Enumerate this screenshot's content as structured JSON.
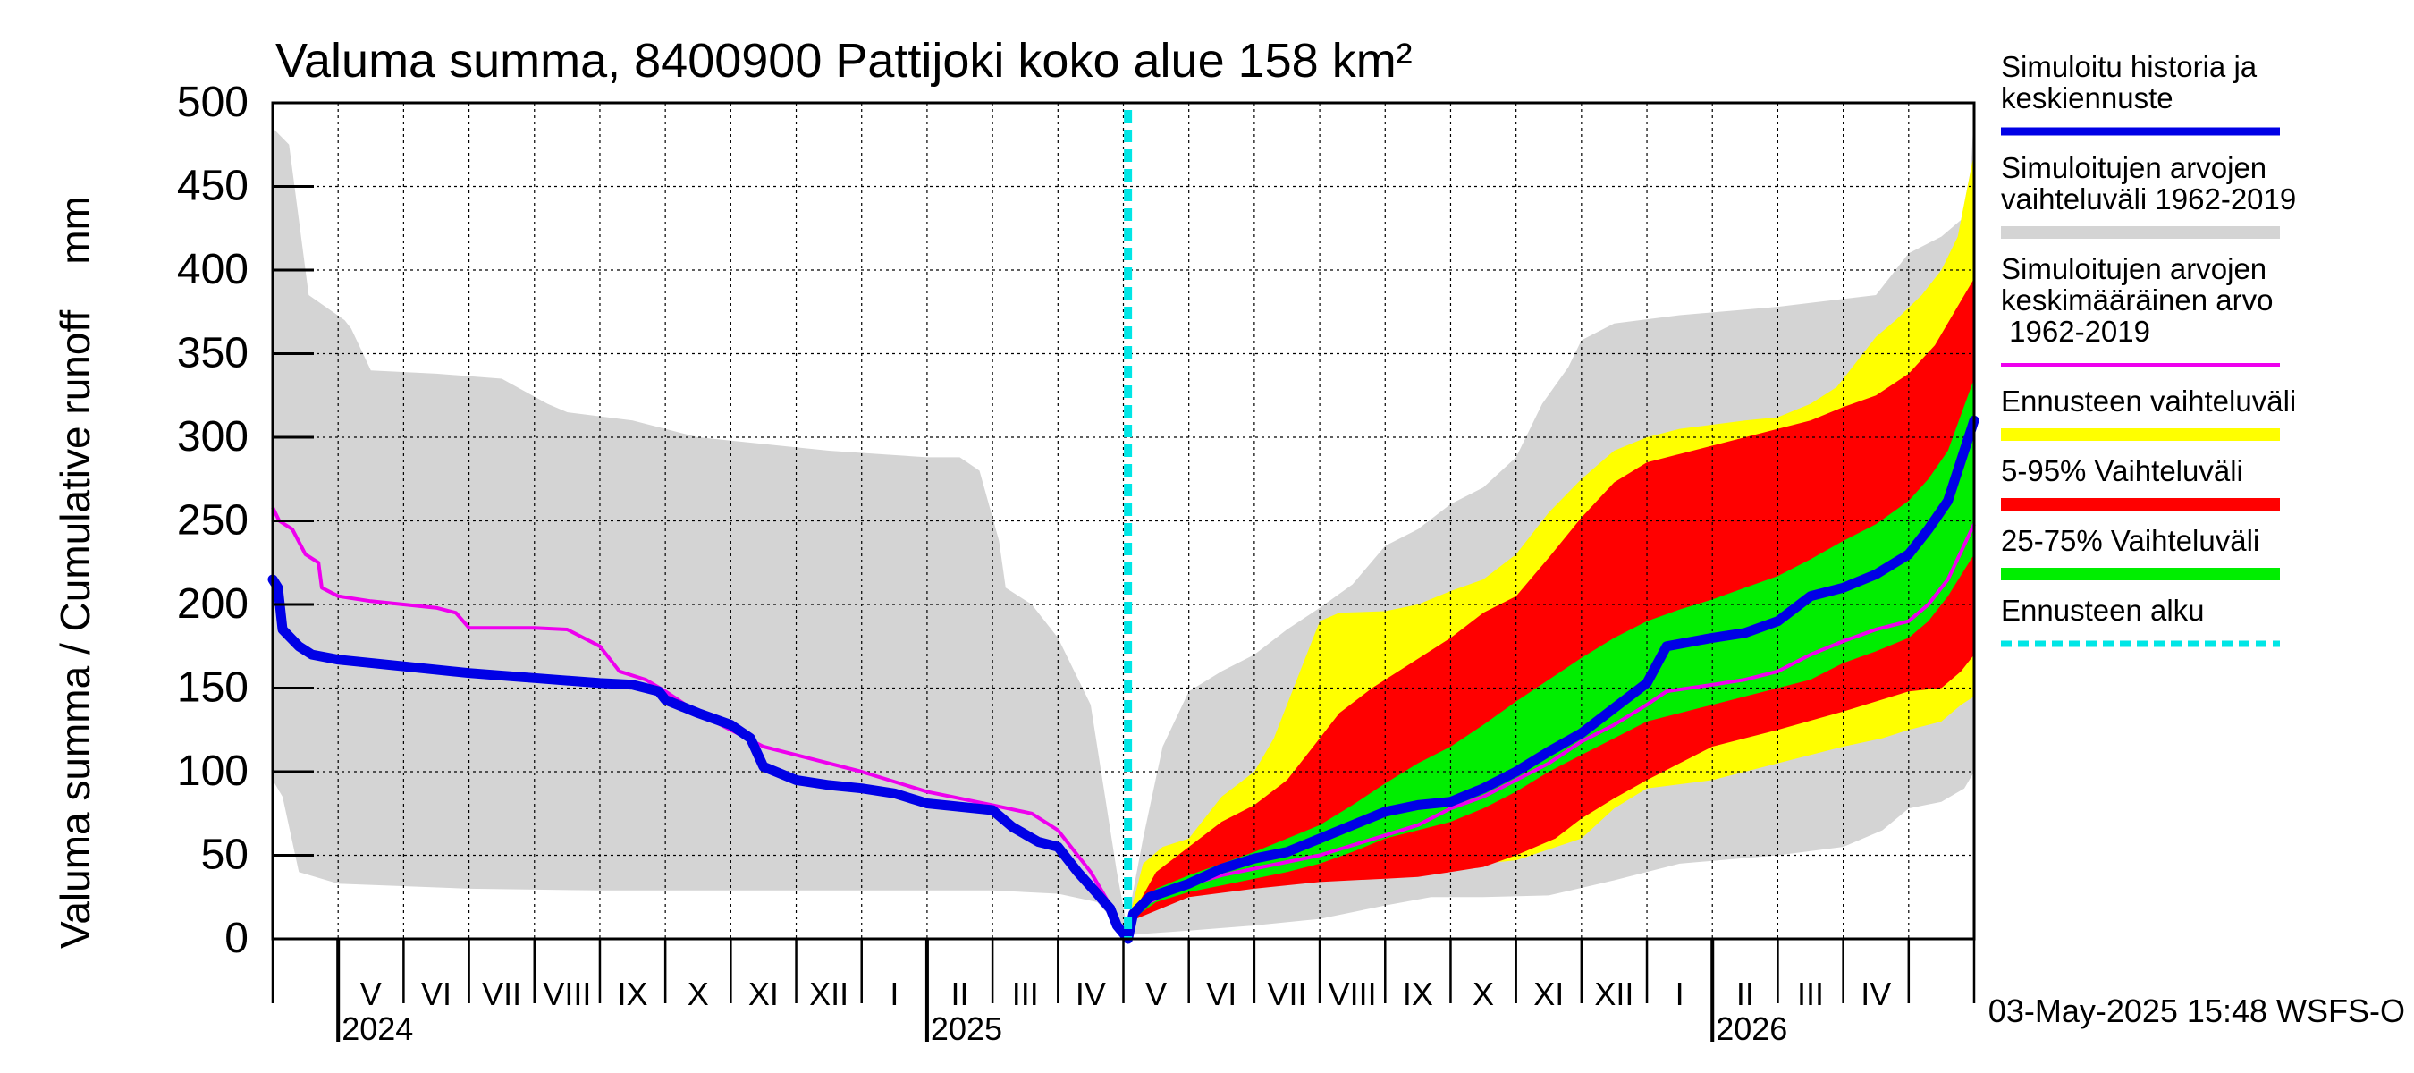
{
  "chart_data": {
    "type": "area",
    "title": "Valuma summa, 8400900 Pattijoki koko alue 158 km²",
    "ylabel": "Valuma summa / Cumulative runoff    mm",
    "ylim": [
      0,
      500
    ],
    "yticks": [
      0,
      50,
      100,
      150,
      200,
      250,
      300,
      350,
      400,
      450,
      500
    ],
    "x_unit": "months since 2024-04-01",
    "xlim": [
      0,
      26
    ],
    "forecast_start": 13.07,
    "months": [
      "V",
      "VI",
      "VII",
      "VIII",
      "IX",
      "X",
      "XI",
      "XII",
      "I",
      "II",
      "III",
      "IV",
      "V",
      "VI",
      "VII",
      "VIII",
      "IX",
      "X",
      "XI",
      "XII",
      "I",
      "II",
      "III",
      "IV"
    ],
    "years": [
      {
        "label": "2024",
        "x": 0
      },
      {
        "label": "2025",
        "x": 9
      },
      {
        "label": "2026",
        "x": 21
      }
    ],
    "legend": [
      {
        "label": "Simuloitu historia ja\nkeskiennuste",
        "color": "#0000e6",
        "style": "line"
      },
      {
        "label": "Simuloitujen arvojen\nvaihteluväli 1962-2019",
        "color": "#d4d4d4",
        "style": "band"
      },
      {
        "label": "Simuloitujen arvojen\nkeskimääräinen arvo\n   1962-2019",
        "color": "#ee00ee",
        "style": "thin"
      },
      {
        "label": "Ennusteen vaihteluväli",
        "color": "#ffff00",
        "style": "band"
      },
      {
        "label": "5-95% Vaihteluväli",
        "color": "#ff0000",
        "style": "band"
      },
      {
        "label": "25-75% Vaihteluväli",
        "color": "#00ee00",
        "style": "band"
      },
      {
        "label": "Ennusteen alku",
        "color": "#00e6e6",
        "style": "dash"
      }
    ],
    "timestamp": "03-May-2025 15:48 WSFS-O",
    "hist_band": {
      "upper": [
        [
          0,
          485
        ],
        [
          0.25,
          475
        ],
        [
          0.55,
          385
        ],
        [
          1.1,
          370
        ],
        [
          1.2,
          365
        ],
        [
          1.5,
          340
        ],
        [
          2.5,
          338
        ],
        [
          3.5,
          335
        ],
        [
          4.2,
          320
        ],
        [
          4.5,
          315
        ],
        [
          5.5,
          310
        ],
        [
          6.5,
          300
        ],
        [
          7.5,
          296
        ],
        [
          8.5,
          292
        ],
        [
          10,
          288
        ],
        [
          10.5,
          288
        ],
        [
          10.8,
          280
        ],
        [
          11.1,
          238
        ],
        [
          11.2,
          210
        ],
        [
          11.6,
          200
        ],
        [
          12.0,
          180
        ],
        [
          12.5,
          140
        ],
        [
          12.9,
          40
        ],
        [
          13.05,
          8
        ],
        [
          13.3,
          60
        ],
        [
          13.6,
          115
        ],
        [
          14.0,
          148
        ],
        [
          14.5,
          160
        ],
        [
          15.0,
          170
        ],
        [
          15.5,
          185
        ],
        [
          16.0,
          198
        ],
        [
          16.5,
          212
        ],
        [
          17.0,
          235
        ],
        [
          17.5,
          245
        ],
        [
          18.0,
          260
        ],
        [
          18.5,
          270
        ],
        [
          19.0,
          288
        ],
        [
          19.4,
          320
        ],
        [
          19.8,
          342
        ],
        [
          20.0,
          358
        ],
        [
          20.5,
          368
        ],
        [
          21.5,
          373
        ],
        [
          23.0,
          378
        ],
        [
          24.5,
          385
        ],
        [
          25.0,
          410
        ],
        [
          25.5,
          420
        ],
        [
          25.8,
          430
        ],
        [
          25.95,
          460
        ],
        [
          26,
          495
        ]
      ],
      "lower": [
        [
          0,
          95
        ],
        [
          0.15,
          85
        ],
        [
          0.4,
          40
        ],
        [
          1.0,
          33
        ],
        [
          3,
          30
        ],
        [
          5,
          29
        ],
        [
          7,
          29
        ],
        [
          9,
          29
        ],
        [
          11,
          29
        ],
        [
          12,
          27
        ],
        [
          12.6,
          22
        ],
        [
          13.05,
          2
        ],
        [
          13.3,
          3
        ],
        [
          14,
          5
        ],
        [
          15,
          8
        ],
        [
          16,
          12
        ],
        [
          17,
          20
        ],
        [
          17.7,
          25
        ],
        [
          18.5,
          25
        ],
        [
          19.5,
          26
        ],
        [
          20.5,
          35
        ],
        [
          21.5,
          45
        ],
        [
          23,
          50
        ],
        [
          24,
          55
        ],
        [
          24.6,
          65
        ],
        [
          25.0,
          78
        ],
        [
          25.5,
          82
        ],
        [
          25.85,
          90
        ],
        [
          26,
          100
        ]
      ]
    },
    "yellow": {
      "upper": [
        [
          13.07,
          10
        ],
        [
          13.3,
          45
        ],
        [
          13.6,
          55
        ],
        [
          14.0,
          60
        ],
        [
          14.5,
          85
        ],
        [
          15.0,
          100
        ],
        [
          15.3,
          120
        ],
        [
          15.7,
          160
        ],
        [
          16.0,
          190
        ],
        [
          16.3,
          195
        ],
        [
          17.0,
          196
        ],
        [
          17.5,
          200
        ],
        [
          18.0,
          208
        ],
        [
          18.5,
          215
        ],
        [
          19.0,
          230
        ],
        [
          19.5,
          255
        ],
        [
          20.0,
          275
        ],
        [
          20.5,
          292
        ],
        [
          21.0,
          300
        ],
        [
          21.5,
          305
        ],
        [
          22.5,
          310
        ],
        [
          23.0,
          312
        ],
        [
          23.5,
          320
        ],
        [
          23.9,
          330
        ],
        [
          24.2,
          345
        ],
        [
          24.5,
          360
        ],
        [
          24.8,
          370
        ],
        [
          25.2,
          385
        ],
        [
          25.5,
          400
        ],
        [
          25.75,
          420
        ],
        [
          26,
          470
        ]
      ],
      "lower": [
        [
          13.07,
          10
        ],
        [
          14.0,
          30
        ],
        [
          15.0,
          34
        ],
        [
          16.0,
          38
        ],
        [
          17.0,
          40
        ],
        [
          17.5,
          40
        ],
        [
          18.0,
          43
        ],
        [
          19.0,
          47
        ],
        [
          20.0,
          60
        ],
        [
          20.5,
          78
        ],
        [
          21.0,
          90
        ],
        [
          22.0,
          95
        ],
        [
          23.0,
          105
        ],
        [
          24.0,
          115
        ],
        [
          24.6,
          120
        ],
        [
          25.0,
          125
        ],
        [
          25.5,
          130
        ],
        [
          25.8,
          140
        ],
        [
          26,
          145
        ]
      ]
    },
    "red": {
      "upper": [
        [
          13.07,
          10
        ],
        [
          13.5,
          40
        ],
        [
          14.0,
          55
        ],
        [
          14.5,
          70
        ],
        [
          15.0,
          80
        ],
        [
          15.5,
          95
        ],
        [
          15.9,
          115
        ],
        [
          16.3,
          135
        ],
        [
          16.8,
          150
        ],
        [
          17.4,
          165
        ],
        [
          18.0,
          180
        ],
        [
          18.5,
          195
        ],
        [
          19.0,
          205
        ],
        [
          19.5,
          228
        ],
        [
          20.0,
          252
        ],
        [
          20.5,
          273
        ],
        [
          21.0,
          285
        ],
        [
          21.5,
          290
        ],
        [
          22.0,
          295
        ],
        [
          22.5,
          300
        ],
        [
          23.0,
          305
        ],
        [
          23.5,
          310
        ],
        [
          24.0,
          318
        ],
        [
          24.5,
          325
        ],
        [
          25.0,
          338
        ],
        [
          25.4,
          355
        ],
        [
          25.7,
          375
        ],
        [
          26,
          395
        ]
      ],
      "lower": [
        [
          13.07,
          10
        ],
        [
          14.0,
          25
        ],
        [
          15.0,
          30
        ],
        [
          16.0,
          34
        ],
        [
          17.0,
          36
        ],
        [
          17.5,
          37
        ],
        [
          18.0,
          40
        ],
        [
          18.5,
          43
        ],
        [
          19.0,
          50
        ],
        [
          19.6,
          60
        ],
        [
          20.0,
          72
        ],
        [
          20.5,
          84
        ],
        [
          21.0,
          95
        ],
        [
          21.5,
          105
        ],
        [
          22.0,
          115
        ],
        [
          23.0,
          125
        ],
        [
          24.0,
          136
        ],
        [
          24.5,
          142
        ],
        [
          25.0,
          148
        ],
        [
          25.5,
          150
        ],
        [
          25.8,
          160
        ],
        [
          26,
          170
        ]
      ]
    },
    "green": {
      "upper": [
        [
          13.07,
          10
        ],
        [
          13.5,
          30
        ],
        [
          14.0,
          38
        ],
        [
          14.5,
          45
        ],
        [
          15.0,
          52
        ],
        [
          15.5,
          60
        ],
        [
          16.0,
          68
        ],
        [
          16.5,
          80
        ],
        [
          17.0,
          93
        ],
        [
          17.5,
          105
        ],
        [
          18.0,
          115
        ],
        [
          18.5,
          128
        ],
        [
          19.0,
          142
        ],
        [
          19.5,
          155
        ],
        [
          20.0,
          168
        ],
        [
          20.5,
          180
        ],
        [
          21.0,
          190
        ],
        [
          21.5,
          197
        ],
        [
          22.0,
          203
        ],
        [
          22.5,
          210
        ],
        [
          23.0,
          217
        ],
        [
          23.5,
          227
        ],
        [
          24.0,
          238
        ],
        [
          24.5,
          248
        ],
        [
          25.0,
          262
        ],
        [
          25.3,
          275
        ],
        [
          25.6,
          292
        ],
        [
          26,
          335
        ]
      ],
      "lower": [
        [
          13.07,
          10
        ],
        [
          13.5,
          22
        ],
        [
          14.0,
          28
        ],
        [
          14.5,
          32
        ],
        [
          15.0,
          36
        ],
        [
          15.5,
          40
        ],
        [
          16.0,
          45
        ],
        [
          16.5,
          52
        ],
        [
          17.0,
          60
        ],
        [
          17.5,
          65
        ],
        [
          18.0,
          70
        ],
        [
          18.5,
          78
        ],
        [
          19.0,
          88
        ],
        [
          19.5,
          100
        ],
        [
          20.0,
          110
        ],
        [
          20.5,
          120
        ],
        [
          21.0,
          130
        ],
        [
          21.5,
          135
        ],
        [
          22.0,
          140
        ],
        [
          22.5,
          145
        ],
        [
          23.0,
          150
        ],
        [
          23.5,
          155
        ],
        [
          24.0,
          165
        ],
        [
          24.5,
          172
        ],
        [
          25.0,
          180
        ],
        [
          25.3,
          190
        ],
        [
          25.6,
          205
        ],
        [
          26,
          230
        ]
      ]
    },
    "hist_mean": [
      [
        0,
        258
      ],
      [
        0.1,
        250
      ],
      [
        0.3,
        245
      ],
      [
        0.5,
        230
      ],
      [
        0.7,
        225
      ],
      [
        0.75,
        210
      ],
      [
        1.0,
        205
      ],
      [
        1.5,
        202
      ],
      [
        2.5,
        198
      ],
      [
        2.8,
        195
      ],
      [
        3.0,
        186
      ],
      [
        4.0,
        186
      ],
      [
        4.5,
        185
      ],
      [
        5.0,
        175
      ],
      [
        5.3,
        160
      ],
      [
        5.7,
        155
      ],
      [
        6.0,
        148
      ],
      [
        6.5,
        135
      ],
      [
        7.0,
        125
      ],
      [
        7.5,
        115
      ],
      [
        8.0,
        110
      ],
      [
        9.0,
        100
      ],
      [
        10.0,
        88
      ],
      [
        11.0,
        80
      ],
      [
        11.6,
        75
      ],
      [
        12.0,
        65
      ],
      [
        12.5,
        40
      ],
      [
        12.8,
        20
      ],
      [
        13.0,
        4
      ],
      [
        13.07,
        8
      ],
      [
        13.3,
        20
      ],
      [
        13.8,
        30
      ],
      [
        14.5,
        38
      ],
      [
        15.0,
        42
      ],
      [
        16.0,
        50
      ],
      [
        17.0,
        62
      ],
      [
        17.5,
        68
      ],
      [
        18.0,
        78
      ],
      [
        18.5,
        85
      ],
      [
        19.0,
        95
      ],
      [
        19.5,
        105
      ],
      [
        20.0,
        118
      ],
      [
        20.5,
        128
      ],
      [
        21.0,
        140
      ],
      [
        21.3,
        148
      ],
      [
        22.0,
        152
      ],
      [
        22.5,
        155
      ],
      [
        23.0,
        160
      ],
      [
        23.5,
        170
      ],
      [
        24.0,
        178
      ],
      [
        24.5,
        185
      ],
      [
        25.0,
        190
      ],
      [
        25.3,
        200
      ],
      [
        25.6,
        215
      ],
      [
        26,
        248
      ]
    ],
    "main_line": [
      [
        0,
        215
      ],
      [
        0.08,
        210
      ],
      [
        0.15,
        185
      ],
      [
        0.4,
        175
      ],
      [
        0.6,
        170
      ],
      [
        1.0,
        167
      ],
      [
        2.0,
        163
      ],
      [
        3.0,
        159
      ],
      [
        4.0,
        156
      ],
      [
        5.0,
        153
      ],
      [
        5.5,
        152
      ],
      [
        5.9,
        148
      ],
      [
        6.0,
        143
      ],
      [
        6.5,
        135
      ],
      [
        7.0,
        128
      ],
      [
        7.3,
        120
      ],
      [
        7.5,
        103
      ],
      [
        8.0,
        95
      ],
      [
        8.5,
        92
      ],
      [
        9.0,
        90
      ],
      [
        9.5,
        87
      ],
      [
        10.0,
        81
      ],
      [
        11.0,
        77
      ],
      [
        11.3,
        67
      ],
      [
        11.7,
        58
      ],
      [
        12.0,
        55
      ],
      [
        12.3,
        40
      ],
      [
        12.6,
        27
      ],
      [
        12.8,
        18
      ],
      [
        12.9,
        8
      ],
      [
        13.07,
        0
      ],
      [
        13.15,
        15
      ],
      [
        13.4,
        25
      ],
      [
        14.0,
        33
      ],
      [
        14.5,
        42
      ],
      [
        15.0,
        48
      ],
      [
        15.5,
        52
      ],
      [
        16.0,
        60
      ],
      [
        16.5,
        68
      ],
      [
        17.0,
        76
      ],
      [
        17.5,
        80
      ],
      [
        18.0,
        82
      ],
      [
        18.5,
        90
      ],
      [
        19.0,
        100
      ],
      [
        19.5,
        112
      ],
      [
        20.0,
        123
      ],
      [
        20.5,
        138
      ],
      [
        21.0,
        153
      ],
      [
        21.3,
        175
      ],
      [
        22.0,
        180
      ],
      [
        22.5,
        183
      ],
      [
        23.0,
        190
      ],
      [
        23.5,
        205
      ],
      [
        24.0,
        210
      ],
      [
        24.5,
        218
      ],
      [
        25.0,
        230
      ],
      [
        25.3,
        245
      ],
      [
        25.6,
        262
      ],
      [
        26,
        310
      ]
    ]
  }
}
